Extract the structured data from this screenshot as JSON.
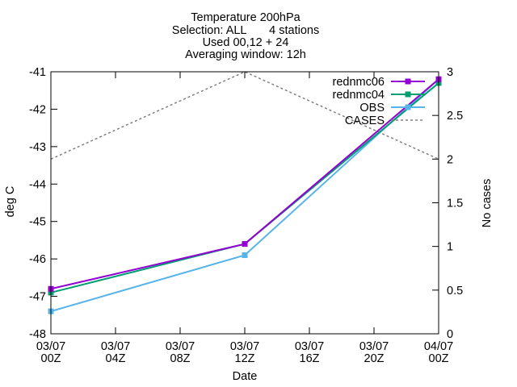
{
  "chart_data": {
    "type": "line",
    "title_lines": [
      "Temperature 200hPa",
      "Selection: ALL       4 stations",
      "Used 00,12 + 24",
      "Averaging window: 12h"
    ],
    "xlabel": "Date",
    "ylabel": "deg C",
    "y2label": "No cases",
    "x_ticks": [
      {
        "line1": "03/07",
        "line2": "00Z",
        "hour": 0
      },
      {
        "line1": "03/07",
        "line2": "04Z",
        "hour": 4
      },
      {
        "line1": "03/07",
        "line2": "08Z",
        "hour": 8
      },
      {
        "line1": "03/07",
        "line2": "12Z",
        "hour": 12
      },
      {
        "line1": "03/07",
        "line2": "16Z",
        "hour": 16
      },
      {
        "line1": "03/07",
        "line2": "20Z",
        "hour": 20
      },
      {
        "line1": "04/07",
        "line2": "00Z",
        "hour": 24
      }
    ],
    "xlim": [
      0,
      24
    ],
    "ylim": [
      -48,
      -41
    ],
    "y_ticks": [
      "-48",
      "-47",
      "-46",
      "-45",
      "-44",
      "-43",
      "-42",
      "-41"
    ],
    "y2lim": [
      0,
      3
    ],
    "y2_ticks": [
      "0",
      "0.5",
      "1",
      "1.5",
      "2",
      "2.5",
      "3"
    ],
    "legend_position": "top-right",
    "grid": false,
    "series": [
      {
        "name": "rednmc06",
        "color": "#9400d3",
        "axis": "y1",
        "marker": "square",
        "dashed": false,
        "x": [
          0,
          12,
          24
        ],
        "y": [
          -46.8,
          -45.6,
          -41.2
        ]
      },
      {
        "name": "rednmc04",
        "color": "#009e73",
        "axis": "y1",
        "marker": "square",
        "dashed": false,
        "x": [
          0,
          12,
          24
        ],
        "y": [
          -46.9,
          -45.6,
          -41.3
        ]
      },
      {
        "name": "OBS",
        "color": "#56b4e9",
        "axis": "y1",
        "marker": "square",
        "dashed": false,
        "x": [
          0,
          12,
          24
        ],
        "y": [
          -47.4,
          -45.9,
          -41.2
        ]
      },
      {
        "name": "CASES",
        "color": "#808080",
        "axis": "y2",
        "marker": "none",
        "dashed": true,
        "x": [
          0,
          12,
          24
        ],
        "y": [
          2,
          3,
          2
        ]
      }
    ]
  }
}
